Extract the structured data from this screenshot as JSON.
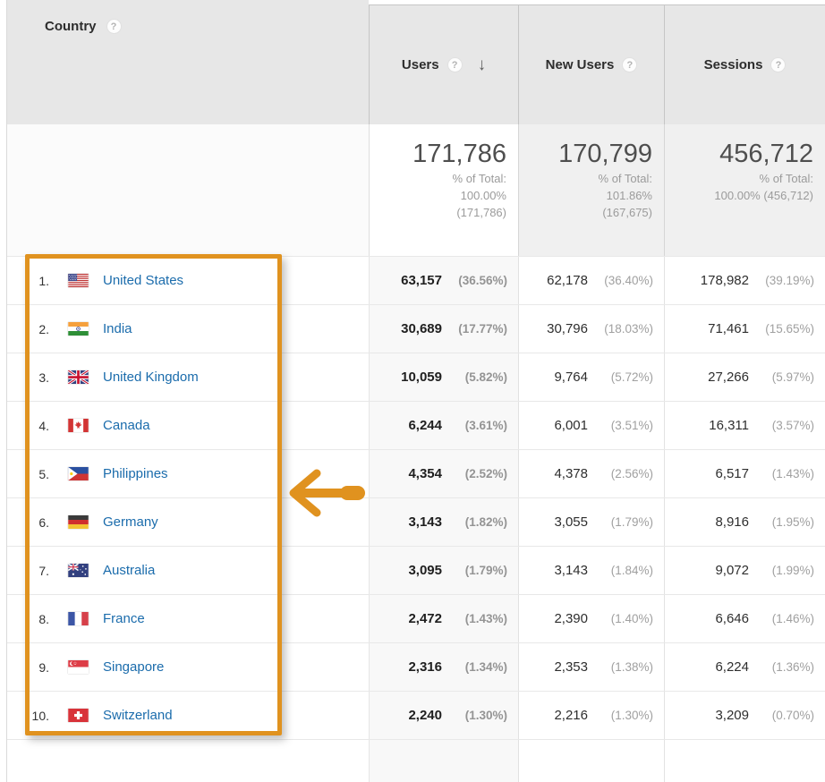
{
  "header": {
    "dimension": {
      "label": "Country"
    },
    "metrics": [
      {
        "label": "Users",
        "sorted": true
      },
      {
        "label": "New Users",
        "sorted": false
      },
      {
        "label": "Sessions",
        "sorted": false
      }
    ]
  },
  "icons": {
    "help_glyph": "?",
    "sort_desc_glyph": "↓"
  },
  "totals": {
    "users": {
      "value": "171,786",
      "line1": "% of Total:",
      "line2": "100.00%",
      "line3": "(171,786)"
    },
    "new_users": {
      "value": "170,799",
      "line1": "% of Total:",
      "line2": "101.86%",
      "line3": "(167,675)"
    },
    "sessions": {
      "value": "456,712",
      "line1": "% of Total:",
      "line2": "100.00% (456,712)"
    }
  },
  "rows": [
    {
      "rank": "1.",
      "country": "United States",
      "flag_icon": "flag-united-states-icon",
      "users": "63,157",
      "users_pct": "(36.56%)",
      "new_users": "62,178",
      "new_users_pct": "(36.40%)",
      "sessions": "178,982",
      "sessions_pct": "(39.19%)"
    },
    {
      "rank": "2.",
      "country": "India",
      "flag_icon": "flag-india-icon",
      "users": "30,689",
      "users_pct": "(17.77%)",
      "new_users": "30,796",
      "new_users_pct": "(18.03%)",
      "sessions": "71,461",
      "sessions_pct": "(15.65%)"
    },
    {
      "rank": "3.",
      "country": "United Kingdom",
      "flag_icon": "flag-united-kingdom-icon",
      "users": "10,059",
      "users_pct": "(5.82%)",
      "new_users": "9,764",
      "new_users_pct": "(5.72%)",
      "sessions": "27,266",
      "sessions_pct": "(5.97%)"
    },
    {
      "rank": "4.",
      "country": "Canada",
      "flag_icon": "flag-canada-icon",
      "users": "6,244",
      "users_pct": "(3.61%)",
      "new_users": "6,001",
      "new_users_pct": "(3.51%)",
      "sessions": "16,311",
      "sessions_pct": "(3.57%)"
    },
    {
      "rank": "5.",
      "country": "Philippines",
      "flag_icon": "flag-philippines-icon",
      "users": "4,354",
      "users_pct": "(2.52%)",
      "new_users": "4,378",
      "new_users_pct": "(2.56%)",
      "sessions": "6,517",
      "sessions_pct": "(1.43%)"
    },
    {
      "rank": "6.",
      "country": "Germany",
      "flag_icon": "flag-germany-icon",
      "users": "3,143",
      "users_pct": "(1.82%)",
      "new_users": "3,055",
      "new_users_pct": "(1.79%)",
      "sessions": "8,916",
      "sessions_pct": "(1.95%)"
    },
    {
      "rank": "7.",
      "country": "Australia",
      "flag_icon": "flag-australia-icon",
      "users": "3,095",
      "users_pct": "(1.79%)",
      "new_users": "3,143",
      "new_users_pct": "(1.84%)",
      "sessions": "9,072",
      "sessions_pct": "(1.99%)"
    },
    {
      "rank": "8.",
      "country": "France",
      "flag_icon": "flag-france-icon",
      "users": "2,472",
      "users_pct": "(1.43%)",
      "new_users": "2,390",
      "new_users_pct": "(1.40%)",
      "sessions": "6,646",
      "sessions_pct": "(1.46%)"
    },
    {
      "rank": "9.",
      "country": "Singapore",
      "flag_icon": "flag-singapore-icon",
      "users": "2,316",
      "users_pct": "(1.34%)",
      "new_users": "2,353",
      "new_users_pct": "(1.38%)",
      "sessions": "6,224",
      "sessions_pct": "(1.36%)"
    },
    {
      "rank": "10.",
      "country": "Switzerland",
      "flag_icon": "flag-switzerland-icon",
      "users": "2,240",
      "users_pct": "(1.30%)",
      "new_users": "2,216",
      "new_users_pct": "(1.30%)",
      "sessions": "3,209",
      "sessions_pct": "(0.70%)"
    }
  ],
  "annotation": {
    "highlight_color": "#e0921f"
  }
}
